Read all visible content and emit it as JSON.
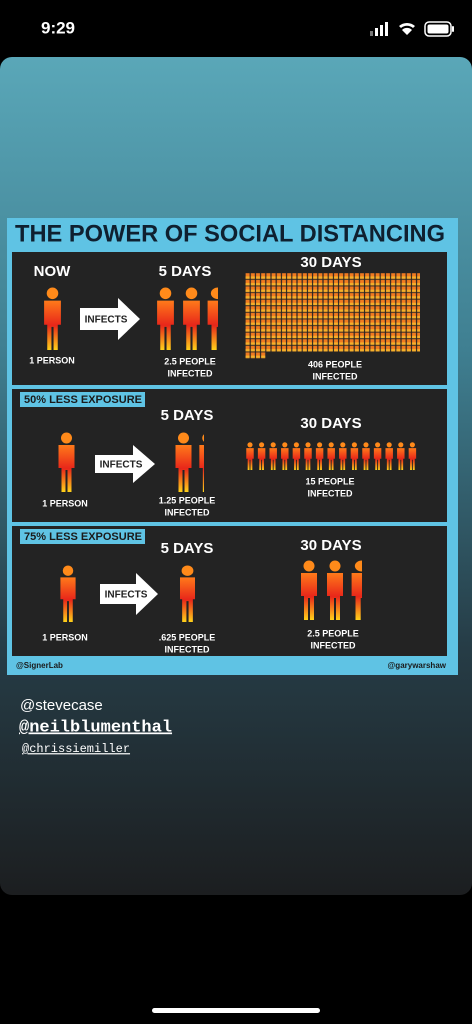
{
  "status": {
    "time": "9:29"
  },
  "infographic": {
    "title": "THE POWER OF SOCIAL DISTANCING",
    "panels": [
      {
        "start_label": "NOW",
        "five_label": "5 DAYS",
        "thirty_label": "30 DAYS",
        "arrow": "INFECTS",
        "start_caption": "1 PERSON",
        "five_caption": [
          "2.5 PEOPLE",
          "INFECTED"
        ],
        "thirty_caption": [
          "406 PEOPLE",
          "INFECTED"
        ]
      },
      {
        "header": "50% LESS EXPOSURE",
        "five_label": "5 DAYS",
        "thirty_label": "30 DAYS",
        "arrow": "INFECTS",
        "start_caption": "1 PERSON",
        "five_caption": [
          "1.25 PEOPLE",
          "INFECTED"
        ],
        "thirty_caption": [
          "15 PEOPLE",
          "INFECTED"
        ]
      },
      {
        "header": "75% LESS EXPOSURE",
        "five_label": "5 DAYS",
        "thirty_label": "30 DAYS",
        "arrow": "INFECTS",
        "start_caption": "1 PERSON",
        "five_caption": [
          ".625 PEOPLE",
          "INFECTED"
        ],
        "thirty_caption": [
          "2.5 PEOPLE",
          "INFECTED"
        ]
      }
    ],
    "credits": {
      "left": "@SignerLab",
      "right": "@garywarshaw"
    }
  },
  "mentions": [
    "@stevecase",
    "@neilblumenthal",
    "@chrissiemiller"
  ]
}
